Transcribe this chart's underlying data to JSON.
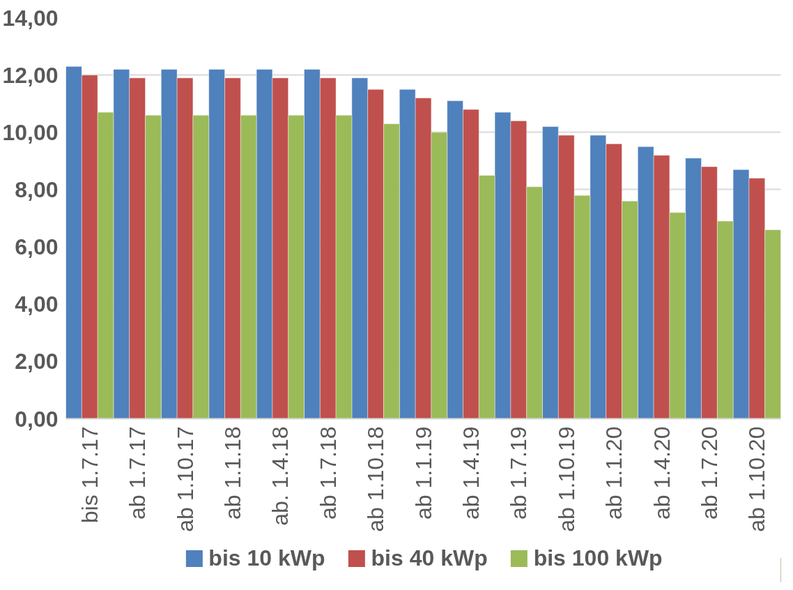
{
  "chart_data": {
    "type": "bar",
    "categories": [
      "bis 1.7.17",
      "ab 1.7.17",
      "ab 1.10.17",
      "ab 1.1.18",
      "ab. 1.4.18",
      "ab 1.7.18",
      "ab 1.10.18",
      "ab 1.1.19",
      "ab 1.4.19",
      "ab 1.7.19",
      "ab 1.10.19",
      "ab 1.1.20",
      "ab 1.4.20",
      "ab 1.7.20",
      "ab 1.10.20"
    ],
    "series": [
      {
        "name": "bis 10 kWp",
        "color": "#4f81bd",
        "values": [
          12.3,
          12.2,
          12.2,
          12.2,
          12.2,
          12.2,
          11.9,
          11.5,
          11.1,
          10.7,
          10.2,
          9.9,
          9.5,
          9.1,
          8.7
        ]
      },
      {
        "name": "bis 40 kWp",
        "color": "#c0504d",
        "values": [
          12.0,
          11.9,
          11.9,
          11.9,
          11.9,
          11.9,
          11.5,
          11.2,
          10.8,
          10.4,
          9.9,
          9.6,
          9.2,
          8.8,
          8.4
        ]
      },
      {
        "name": "bis 100 kWp",
        "color": "#9bbb59",
        "values": [
          10.7,
          10.6,
          10.6,
          10.6,
          10.6,
          10.6,
          10.3,
          10.0,
          8.5,
          8.1,
          7.8,
          7.6,
          7.2,
          6.9,
          6.6
        ]
      }
    ],
    "ylim": [
      0,
      14
    ],
    "yticks": [
      {
        "value": 0,
        "label": "0,00"
      },
      {
        "value": 2,
        "label": "2,00"
      },
      {
        "value": 4,
        "label": "4,00"
      },
      {
        "value": 6,
        "label": "6,00"
      },
      {
        "value": 8,
        "label": "8,00"
      },
      {
        "value": 10,
        "label": "10,00"
      },
      {
        "value": 12,
        "label": "12,00"
      },
      {
        "value": 14,
        "label": "14,00"
      }
    ],
    "grid": "y",
    "legend": "bottom"
  }
}
